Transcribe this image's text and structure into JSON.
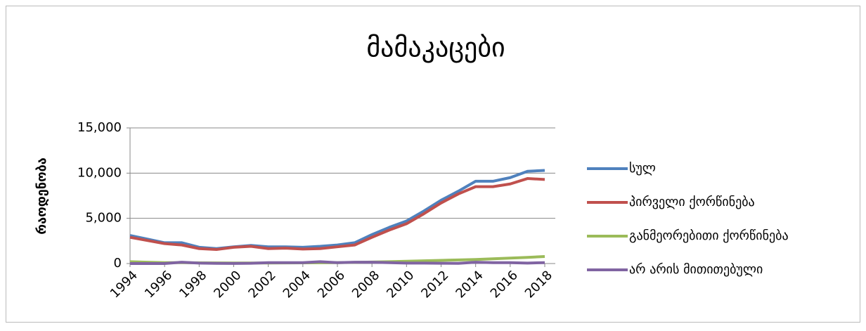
{
  "chart_data": {
    "type": "line",
    "title": "მამაკაცები",
    "ylabel": "რაოდენობა",
    "x": [
      1994,
      1995,
      1996,
      1997,
      1998,
      1999,
      2000,
      2001,
      2002,
      2003,
      2004,
      2005,
      2006,
      2007,
      2008,
      2009,
      2010,
      2011,
      2012,
      2013,
      2014,
      2015,
      2016,
      2017,
      2018
    ],
    "xlim": [
      1994,
      2018
    ],
    "xticks": [
      1994,
      1996,
      1998,
      2000,
      2002,
      2004,
      2006,
      2008,
      2010,
      2012,
      2014,
      2016,
      2018
    ],
    "ylim": [
      0,
      15000
    ],
    "yticks": [
      0,
      {
        "value": 5000,
        "label": "5,000"
      },
      {
        "value": 10000,
        "label": "10,000"
      },
      {
        "value": 15000,
        "label": "15,000"
      }
    ],
    "grid": true,
    "legend": "right",
    "series": [
      {
        "name": "სულ",
        "color": "#4f81bd",
        "values": [
          3100,
          2700,
          2300,
          2300,
          1800,
          1650,
          1850,
          2000,
          1850,
          1850,
          1800,
          1900,
          2050,
          2300,
          3200,
          4000,
          4700,
          5800,
          7000,
          8000,
          9100,
          9100,
          9500,
          10200,
          10300
        ]
      },
      {
        "name": "პირველი ქორწინება",
        "color": "#c0504d",
        "values": [
          2900,
          2550,
          2200,
          2050,
          1650,
          1550,
          1800,
          1900,
          1650,
          1700,
          1600,
          1650,
          1850,
          2050,
          2900,
          3700,
          4400,
          5500,
          6700,
          7700,
          8500,
          8500,
          8800,
          9400,
          9300
        ]
      },
      {
        "name": "განმეორებითი ქორწინება",
        "color": "#9bbb59",
        "values": [
          200,
          150,
          100,
          100,
          80,
          70,
          60,
          60,
          60,
          70,
          80,
          90,
          100,
          130,
          170,
          200,
          250,
          300,
          350,
          400,
          450,
          520,
          600,
          680,
          780
        ]
      },
      {
        "name": "არ არის მითითებული",
        "color": "#8064a2",
        "values": [
          0,
          0,
          0,
          150,
          50,
          20,
          10,
          30,
          100,
          100,
          100,
          200,
          100,
          150,
          150,
          100,
          50,
          50,
          30,
          20,
          150,
          100,
          100,
          50,
          100
        ]
      }
    ]
  }
}
